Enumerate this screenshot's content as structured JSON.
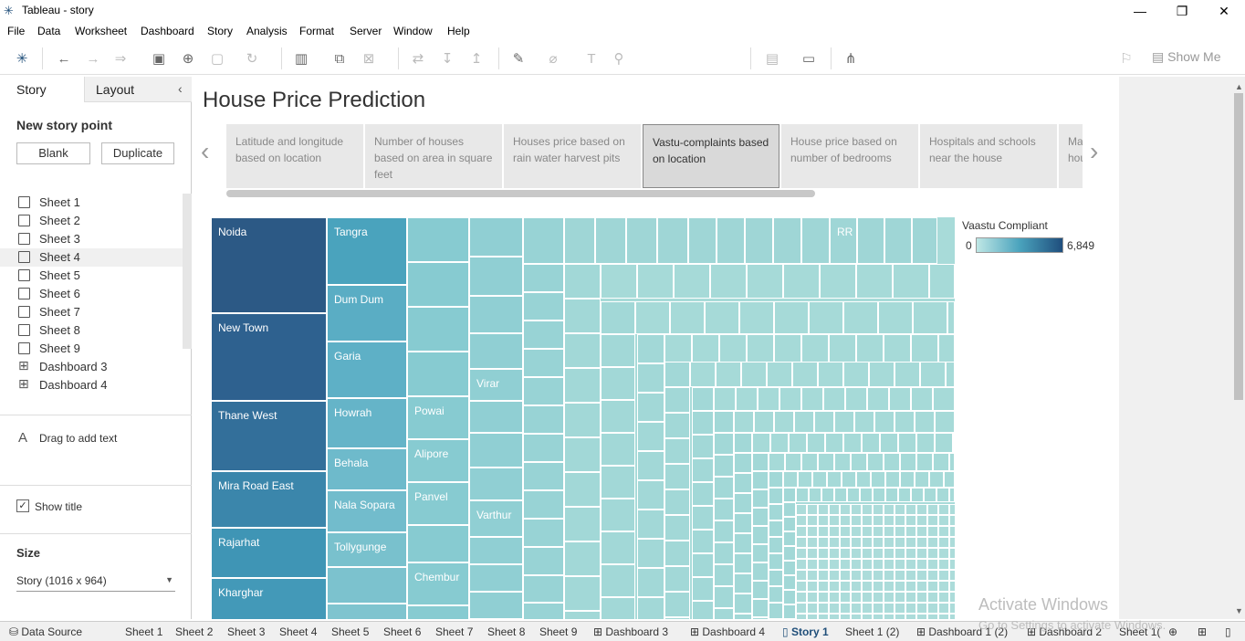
{
  "window": {
    "title": "Tableau - story"
  },
  "menu": [
    "File",
    "Data",
    "Worksheet",
    "Dashboard",
    "Story",
    "Analysis",
    "Format",
    "Server",
    "Window",
    "Help"
  ],
  "toolbar": {
    "show_me": "Show Me"
  },
  "side": {
    "tab_story": "Story",
    "tab_layout": "Layout",
    "new_story_point": "New story point",
    "blank": "Blank",
    "duplicate": "Duplicate",
    "sheets": [
      "Sheet 1",
      "Sheet 2",
      "Sheet 3",
      "Sheet 4",
      "Sheet 5",
      "Sheet 6",
      "Sheet 7",
      "Sheet 8",
      "Sheet 9",
      "Dashboard 3",
      "Dashboard 4"
    ],
    "drag_text": "Drag to add text",
    "show_title": "Show title",
    "size_label": "Size",
    "size_value": "Story (1016 x 964)"
  },
  "story": {
    "title": "House Price Prediction",
    "points": [
      "Latitude and longitude based on location",
      "Number of houses based on area in square feet",
      "Houses price based on rain water harvest pits",
      "Vastu-complaints based on location",
      "House price based on number of bedrooms",
      "Hospitals and schools near the house",
      "Ma hou"
    ],
    "legend_title": "Vaastu Compliant",
    "legend_min": "0",
    "legend_max": "6,849",
    "cells": [
      "Noida",
      "New Town",
      "Thane West",
      "Mira Road East",
      "Rajarhat",
      "Kharghar",
      "Tangra",
      "Dum Dum",
      "Garia",
      "Howrah",
      "Behala",
      "Nala Sopara",
      "Tollygunge",
      "Powai",
      "Alipore",
      "Panvel",
      "Chembur",
      "Virar",
      "Varthur",
      "RR"
    ]
  },
  "colors": {
    "dark": "#2d5c8a",
    "mid": "#4aa3bd",
    "light": "#a8dbd9"
  },
  "watermark": {
    "line1": "Activate Windows",
    "line2": "Go to Settings to activate Windows."
  },
  "bottom_tabs": [
    "Data Source",
    "Sheet 1",
    "Sheet 2",
    "Sheet 3",
    "Sheet 4",
    "Sheet 5",
    "Sheet 6",
    "Sheet 7",
    "Sheet 8",
    "Sheet 9",
    "Dashboard 3",
    "Dashboard 4",
    "Story 1",
    "Sheet 1 (2)",
    "Dashboard 1 (2)",
    "Dashboard 2",
    "Sheet 1("
  ]
}
